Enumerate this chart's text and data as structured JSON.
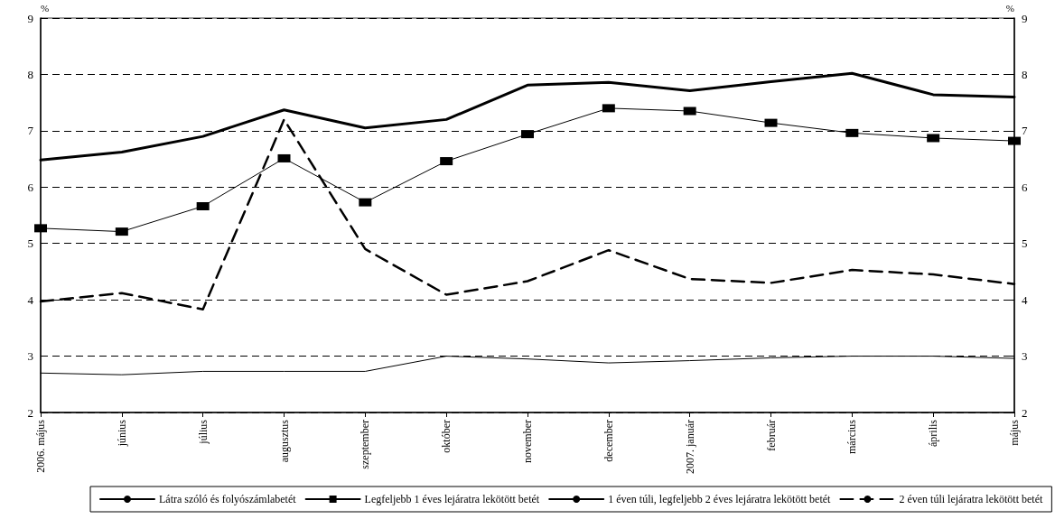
{
  "chart_data": {
    "type": "line",
    "categories": [
      "2006. május",
      "június",
      "július",
      "augusztus",
      "szeptember",
      "október",
      "november",
      "december",
      "2007. január",
      "február",
      "március",
      "április",
      "május"
    ],
    "series": [
      {
        "name": "Látra szóló és folyószámlabetét",
        "color": "#000000",
        "marker": "none",
        "line_style": "solid",
        "values": [
          2.7,
          2.67,
          2.73,
          2.73,
          2.73,
          3.0,
          2.95,
          2.88,
          2.92,
          2.97,
          3.0,
          3.0,
          2.96
        ]
      },
      {
        "name": "Legfeljebb 1 éves lejáratra lekötött betét",
        "color": "#000000",
        "marker": "square",
        "line_style": "solid",
        "values": [
          5.27,
          5.21,
          5.66,
          6.51,
          5.73,
          6.46,
          6.94,
          7.4,
          7.35,
          7.14,
          6.96,
          6.87,
          6.82
        ]
      },
      {
        "name": "1 éven túli, legfeljebb 2 éves lejáratra lekötött betét",
        "color": "#000000",
        "marker": "none",
        "line_style": "solid",
        "values": [
          6.48,
          6.62,
          6.9,
          7.37,
          7.05,
          7.2,
          7.81,
          7.86,
          7.71,
          7.87,
          8.02,
          7.64,
          7.6
        ]
      },
      {
        "name": "2 éven túli lejáratra lekötött betét",
        "color": "#000000",
        "marker": "none",
        "line_style": "dashed",
        "values": [
          3.97,
          4.12,
          3.83,
          7.2,
          4.9,
          4.09,
          4.33,
          4.88,
          4.37,
          4.3,
          4.53,
          4.45,
          4.28
        ]
      }
    ],
    "ylabel": "%",
    "y2label": "%",
    "ylim": [
      2,
      9
    ],
    "yticks": [
      2,
      3,
      4,
      5,
      6,
      7,
      8,
      9
    ],
    "y2lim": [
      2,
      9
    ],
    "y2ticks": [
      2,
      3,
      4,
      5,
      6,
      7,
      8,
      9
    ],
    "grid": "y",
    "legend": "bottom"
  }
}
